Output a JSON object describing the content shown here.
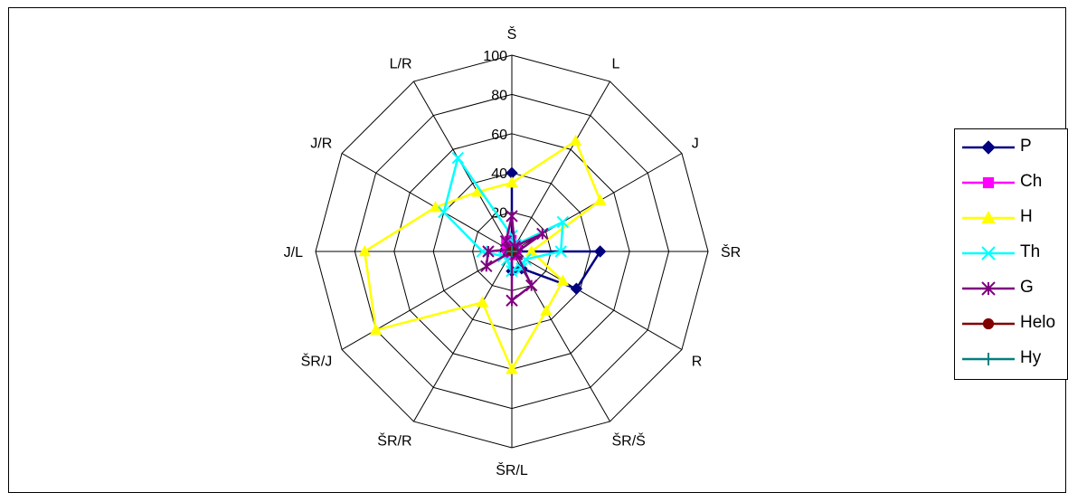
{
  "chart_data": {
    "type": "radar",
    "categories": [
      "Š",
      "L",
      "J",
      "ŠR",
      "R",
      "ŠR/Š",
      "ŠR/L",
      "ŠR/R",
      "ŠR/J",
      "J/L",
      "J/R",
      "L/R"
    ],
    "rlim": [
      0,
      100
    ],
    "ticks": [
      "0",
      "20",
      "40",
      "60",
      "80",
      "100"
    ],
    "tick_values": [
      0,
      20,
      40,
      60,
      80,
      100
    ],
    "legend_position": "right",
    "series": [
      {
        "name": "P",
        "color": "#000080",
        "marker": "diamond",
        "values": [
          40,
          0,
          0,
          45,
          38,
          10,
          10,
          0,
          0,
          0,
          0,
          0
        ]
      },
      {
        "name": "Ch",
        "color": "#ff00ff",
        "marker": "square",
        "values": [
          6,
          4,
          3,
          2,
          2,
          2,
          2,
          2,
          2,
          2,
          3,
          6
        ]
      },
      {
        "name": "H",
        "color": "#ffff00",
        "marker": "triangle",
        "values": [
          35,
          65,
          52,
          10,
          30,
          35,
          60,
          30,
          80,
          75,
          45,
          35
        ]
      },
      {
        "name": "Th",
        "color": "#00ffff",
        "marker": "x",
        "values": [
          8,
          4,
          30,
          25,
          8,
          10,
          10,
          5,
          5,
          15,
          40,
          55
        ]
      },
      {
        "name": "G",
        "color": "#800080",
        "marker": "star",
        "values": [
          18,
          3,
          18,
          3,
          3,
          20,
          25,
          0,
          15,
          12,
          2,
          6
        ]
      },
      {
        "name": "Helo",
        "color": "#800000",
        "marker": "circle",
        "values": [
          0,
          0,
          0,
          0,
          0,
          0,
          0,
          0,
          0,
          0,
          0,
          0
        ]
      },
      {
        "name": "Hy",
        "color": "#008080",
        "marker": "plus",
        "values": [
          0,
          0,
          0,
          0,
          0,
          0,
          0,
          0,
          0,
          0,
          0,
          0
        ]
      }
    ]
  }
}
